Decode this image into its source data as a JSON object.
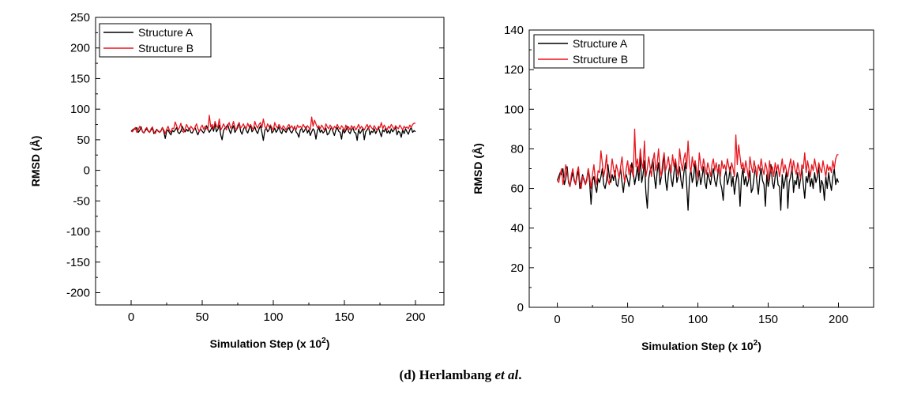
{
  "chart_data": [
    {
      "type": "line",
      "xlabel_main": "Simulation Step (x 10",
      "xlabel_sup": "2",
      "xlabel_end": ")",
      "ylabel": "RMSD (Å)",
      "xlim": [
        -25,
        220
      ],
      "ylim": [
        -220,
        250
      ],
      "xticks": [
        0,
        50,
        100,
        150,
        200
      ],
      "yticks": [
        -200,
        -150,
        -100,
        -50,
        0,
        50,
        100,
        150,
        200,
        250
      ],
      "legend_position": "top-left",
      "grid": false,
      "series": [
        {
          "name": "Structure A",
          "color": "#000000",
          "ref": "A"
        },
        {
          "name": "Structure B",
          "color": "#e8141c",
          "ref": "B"
        }
      ]
    },
    {
      "type": "line",
      "xlabel_main": "Simulation Step (x 10",
      "xlabel_sup": "2",
      "xlabel_end": ")",
      "ylabel": "RMSD (Å)",
      "xlim": [
        -20,
        225
      ],
      "ylim": [
        0,
        140
      ],
      "xticks": [
        0,
        50,
        100,
        150,
        200
      ],
      "yticks": [
        0,
        20,
        40,
        60,
        80,
        100,
        120,
        140
      ],
      "legend_position": "top-left",
      "grid": false,
      "series": [
        {
          "name": "Structure A",
          "color": "#000000",
          "ref": "A"
        },
        {
          "name": "Structure B",
          "color": "#e8141c",
          "ref": "B"
        }
      ]
    }
  ],
  "series_values": {
    "x_start": 0,
    "x_step": 1,
    "A": [
      64,
      66,
      68,
      67,
      70,
      62,
      65,
      71,
      63,
      61,
      65,
      68,
      64,
      62,
      66,
      69,
      60,
      63,
      67,
      64,
      62,
      65,
      70,
      63,
      52,
      64,
      66,
      61,
      58,
      65,
      63,
      66,
      70,
      62,
      60,
      64,
      72,
      66,
      63,
      67,
      64,
      69,
      62,
      61,
      66,
      70,
      63,
      58,
      65,
      67,
      64,
      61,
      66,
      73,
      68,
      62,
      66,
      71,
      64,
      76,
      63,
      67,
      74,
      58,
      50,
      65,
      69,
      71,
      75,
      66,
      60,
      68,
      73,
      62,
      66,
      70,
      78,
      64,
      59,
      67,
      72,
      65,
      61,
      68,
      74,
      63,
      66,
      71,
      64,
      60,
      68,
      73,
      62,
      49,
      65,
      70,
      63,
      66,
      74,
      61,
      64,
      69,
      62,
      66,
      71,
      63,
      60,
      68,
      65,
      62,
      67,
      70,
      64,
      61,
      66,
      72,
      63,
      60,
      54,
      66,
      69,
      62,
      65,
      71,
      61,
      66,
      57,
      63,
      68,
      64,
      51,
      65,
      70,
      62,
      66,
      61,
      64,
      69,
      58,
      60,
      66,
      71,
      63,
      57,
      66,
      70,
      64,
      62,
      51,
      67,
      61,
      65,
      72,
      63,
      60,
      66,
      70,
      62,
      61,
      49,
      67,
      60,
      64,
      69,
      50,
      63,
      66,
      71,
      58,
      64,
      62,
      68,
      60,
      65,
      70,
      62,
      55,
      66,
      63,
      69,
      61,
      65,
      60,
      68,
      63,
      66,
      71,
      58,
      64,
      62,
      54,
      66,
      60,
      68,
      63,
      59,
      66,
      70,
      62,
      65,
      63
    ],
    "B": [
      64,
      63,
      67,
      70,
      62,
      66,
      72,
      68,
      64,
      61,
      67,
      70,
      65,
      62,
      68,
      71,
      63,
      60,
      66,
      65,
      62,
      64,
      70,
      66,
      60,
      67,
      72,
      65,
      62,
      69,
      68,
      79,
      73,
      66,
      70,
      77,
      64,
      62,
      68,
      75,
      70,
      66,
      72,
      69,
      65,
      71,
      76,
      68,
      63,
      70,
      74,
      67,
      72,
      69,
      66,
      90,
      71,
      75,
      68,
      80,
      73,
      70,
      84,
      66,
      70,
      76,
      71,
      66,
      74,
      78,
      69,
      72,
      80,
      70,
      66,
      74,
      78,
      69,
      72,
      76,
      70,
      68,
      77,
      71,
      75,
      70,
      66,
      80,
      73,
      69,
      75,
      78,
      70,
      84,
      72,
      68,
      76,
      71,
      74,
      70,
      65,
      78,
      72,
      69,
      75,
      71,
      67,
      73,
      70,
      66,
      72,
      75,
      69,
      73,
      68,
      71,
      66,
      74,
      70,
      72,
      69,
      75,
      71,
      68,
      73,
      70,
      66,
      87,
      72,
      82,
      76,
      70,
      73,
      68,
      74,
      70,
      65,
      76,
      71,
      68,
      74,
      70,
      66,
      72,
      69,
      75,
      70,
      67,
      73,
      70,
      64,
      74,
      68,
      71,
      66,
      73,
      69,
      72,
      66,
      70,
      75,
      68,
      72,
      69,
      66,
      71,
      75,
      68,
      74,
      70,
      67,
      73,
      69,
      65,
      72,
      70,
      78,
      68,
      74,
      70,
      66,
      72,
      69,
      75,
      71,
      67,
      73,
      70,
      68,
      74,
      70,
      66,
      72,
      69,
      71,
      68,
      74,
      70,
      75,
      77,
      77
    ]
  },
  "legend": {
    "a": "Structure A",
    "b": "Structure B"
  },
  "caption": {
    "prefix": "(d) Herlambang ",
    "italic": "et al",
    "suffix": "."
  }
}
